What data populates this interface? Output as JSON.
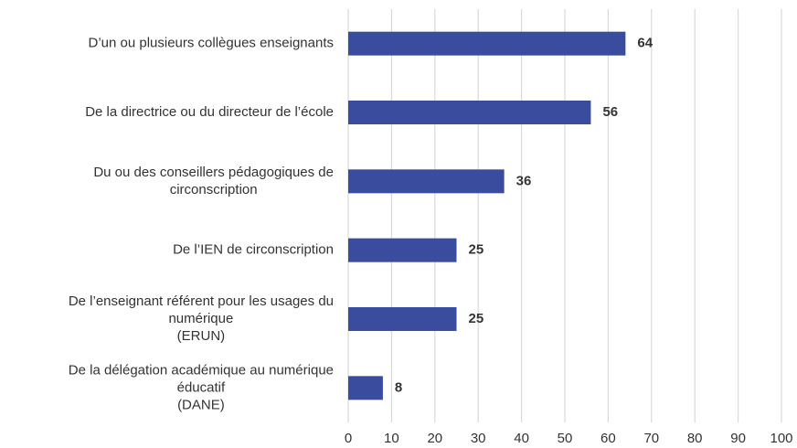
{
  "chart_data": {
    "type": "bar",
    "orientation": "horizontal",
    "categories": [
      [
        "D’un ou plusieurs collègues enseignants"
      ],
      [
        "De la directrice ou du directeur de l’école"
      ],
      [
        "Du ou des conseillers pédagogiques de",
        "circonscription"
      ],
      [
        "De l’IEN de circonscription"
      ],
      [
        "De l’enseignant référent pour les usages du",
        "numérique",
        "(ERUN)"
      ],
      [
        "De la délégation académique au numérique",
        "éducatif",
        "(DANE)"
      ]
    ],
    "values": [
      64,
      56,
      36,
      25,
      25,
      8
    ],
    "color": "#3a4c9e",
    "xlim": [
      0,
      100
    ],
    "xticks": [
      0,
      10,
      20,
      30,
      40,
      50,
      60,
      70,
      80,
      90,
      100
    ],
    "grid": true
  }
}
